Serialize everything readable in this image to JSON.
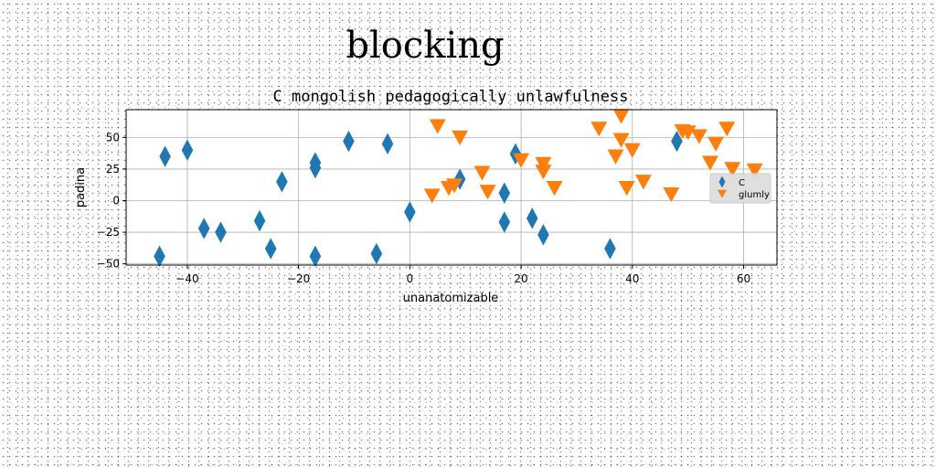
{
  "figure_title": "blocking",
  "chart_data": {
    "type": "scatter",
    "title": "C mongolish pedagogically unlawfulness",
    "xlabel": "unanatomizable",
    "ylabel": "padina",
    "xlim": [
      -51,
      66
    ],
    "ylim": [
      -51,
      72
    ],
    "xticks": [
      -40,
      -20,
      0,
      20,
      40,
      60
    ],
    "yticks": [
      -50,
      -25,
      0,
      25,
      50
    ],
    "grid": true,
    "legend_position": "center-right",
    "series": [
      {
        "name": "C",
        "marker": "diamond",
        "color": "#1f77b4",
        "x": [
          -45,
          -44,
          -40,
          -37,
          -34,
          -27,
          -25,
          -23,
          -17,
          -17,
          -17,
          -11,
          -6,
          -4,
          0,
          9,
          17,
          17,
          19,
          22,
          24,
          36,
          48
        ],
        "y": [
          -44,
          35,
          40,
          -22,
          -25,
          -16,
          -38,
          15,
          30,
          26,
          -44,
          47,
          -42,
          45,
          -9,
          17,
          6,
          -17,
          37,
          -14,
          -27,
          -38,
          47
        ]
      },
      {
        "name": "glumly",
        "marker": "triangle-down",
        "color": "#ff7f0e",
        "x": [
          4,
          5,
          7,
          8,
          9,
          13,
          14,
          20,
          24,
          24,
          26,
          34,
          37,
          38,
          38,
          39,
          40,
          42,
          47,
          49,
          50,
          52,
          54,
          55,
          57,
          58,
          62
        ],
        "y": [
          4,
          59,
          10,
          12,
          50,
          22,
          7,
          32,
          23,
          29,
          10,
          57,
          35,
          48,
          67,
          10,
          40,
          15,
          5,
          55,
          54,
          51,
          30,
          45,
          57,
          25,
          24
        ]
      }
    ]
  }
}
